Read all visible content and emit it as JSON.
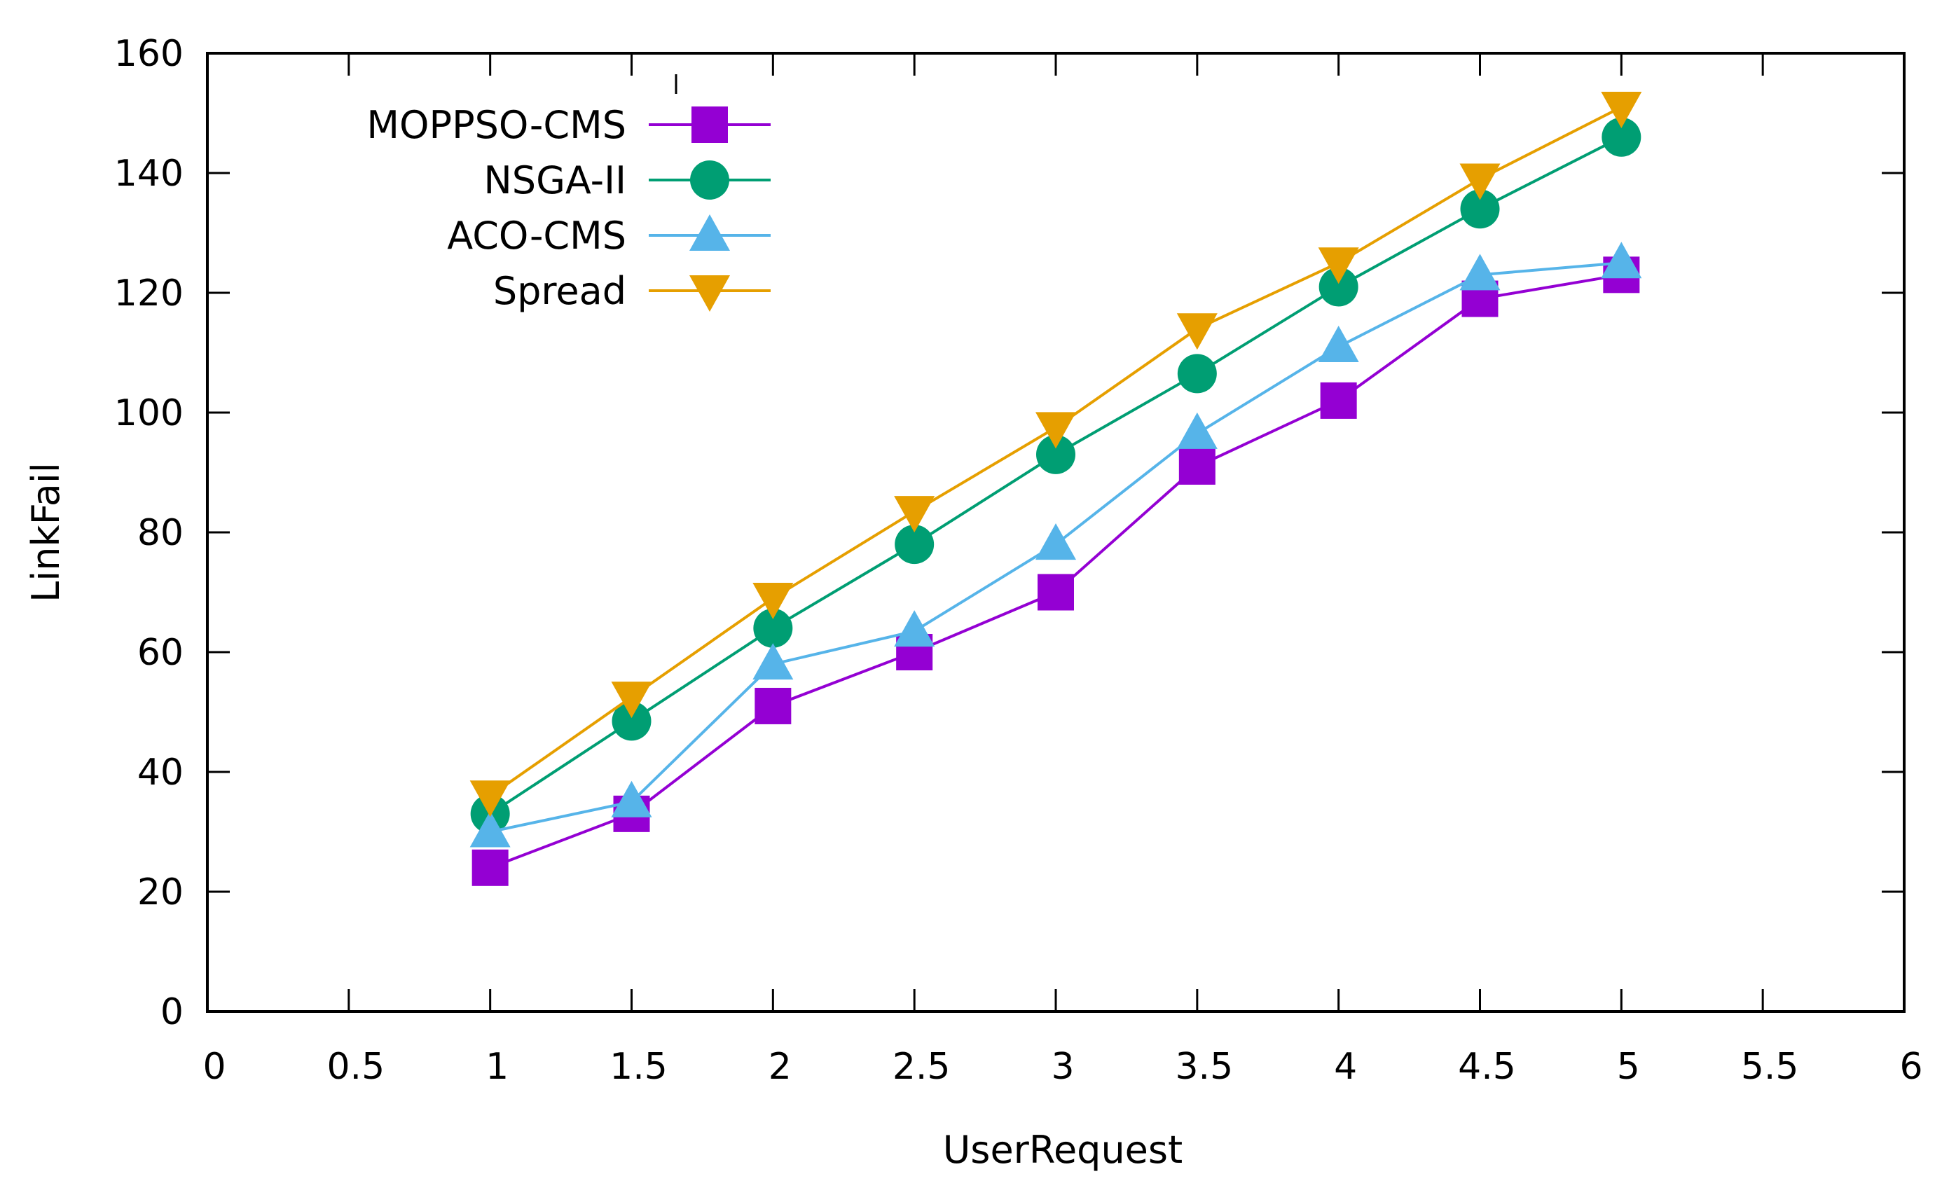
{
  "chart_data": {
    "type": "line",
    "title": "",
    "xlabel": "UserRequest",
    "ylabel": "LinkFail",
    "xlim": [
      0,
      6
    ],
    "ylim": [
      0,
      160
    ],
    "xticks": [
      0,
      0.5,
      1,
      1.5,
      2,
      2.5,
      3,
      3.5,
      4,
      4.5,
      5,
      5.5,
      6
    ],
    "xtick_labels": [
      "0",
      "0.5",
      "1",
      "1.5",
      "2",
      "2.5",
      "3",
      "3.5",
      "4",
      "4.5",
      "5",
      "5.5",
      "6"
    ],
    "yticks": [
      0,
      20,
      40,
      60,
      80,
      100,
      120,
      140,
      160
    ],
    "ytick_labels": [
      "0",
      "20",
      "40",
      "60",
      "80",
      "100",
      "120",
      "140",
      "160"
    ],
    "grid": false,
    "legend_position": "top-left",
    "x": [
      1,
      1.5,
      2,
      2.5,
      3,
      3.5,
      4,
      4.5,
      5
    ],
    "series": [
      {
        "name": "MOPPSO-CMS",
        "color": "#9400d3",
        "marker": "square",
        "values": [
          24,
          33,
          51,
          60,
          70,
          91,
          102,
          119,
          123
        ]
      },
      {
        "name": "NSGA-II",
        "color": "#009e73",
        "marker": "circle",
        "values": [
          33,
          48.5,
          64,
          78,
          93,
          106.5,
          121,
          134,
          146
        ]
      },
      {
        "name": "ACO-CMS",
        "color": "#56b4e9",
        "marker": "triangle-up",
        "values": [
          30,
          35,
          58,
          63.5,
          78,
          96.5,
          111,
          123,
          125
        ]
      },
      {
        "name": "Spread",
        "color": "#e69f00",
        "marker": "triangle-down",
        "values": [
          36,
          52.5,
          69,
          83.5,
          97.5,
          114,
          125,
          139,
          151
        ]
      }
    ]
  }
}
